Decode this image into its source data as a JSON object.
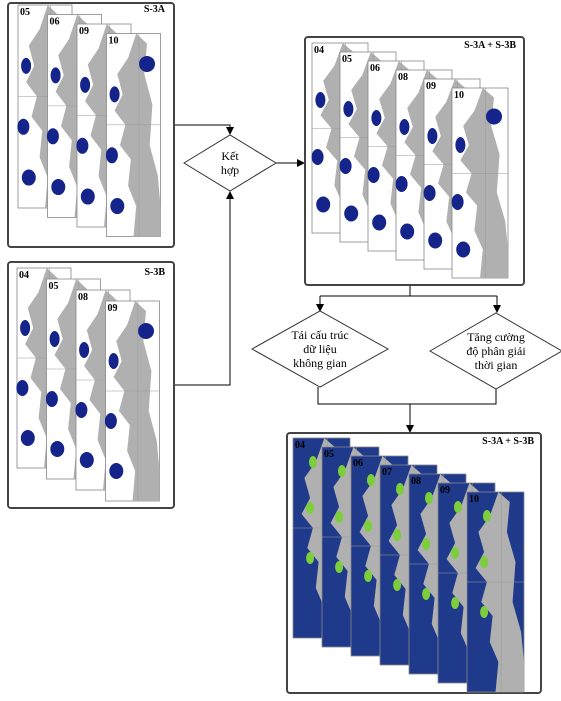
{
  "panels": [
    {
      "label": "S-3A",
      "tiles": [
        "05",
        "06",
        "09",
        "10"
      ]
    },
    {
      "label": "S-3B",
      "tiles": [
        "04",
        "05",
        "08",
        "09"
      ]
    },
    {
      "label": "S-3A + S-3B",
      "tiles": [
        "04",
        "05",
        "06",
        "08",
        "09",
        "10"
      ]
    },
    {
      "label": "S-3A + S-3B",
      "tiles": [
        "04",
        "05",
        "06",
        "07",
        "08",
        "09",
        "10"
      ]
    }
  ],
  "nodes": [
    {
      "lines": [
        "Kết",
        "hợp"
      ]
    },
    {
      "lines": [
        "Tái cấu trúc",
        "dữ liệu",
        "không gian"
      ]
    },
    {
      "lines": [
        "Tăng cường",
        "độ phân giải",
        "thời gian"
      ]
    }
  ]
}
